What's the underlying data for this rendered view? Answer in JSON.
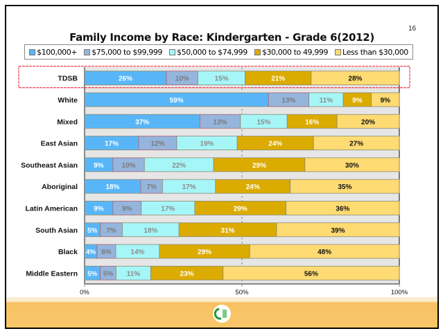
{
  "page_number": "16",
  "chart_data": {
    "type": "bar",
    "orientation": "horizontal",
    "stacked": "percent",
    "title": "Family Income by Race: Kindergarten - Grade 6(2012)",
    "legend_position": "top",
    "categories": [
      "TDSB",
      "White",
      "Mixed",
      "East Asian",
      "Southeast Asian",
      "Aboriginal",
      "Latin American",
      "South Asian",
      "Black",
      "Middle Eastern"
    ],
    "highlighted_category": "TDSB",
    "series": [
      {
        "name": "$100,000+",
        "color": "#58b6f8",
        "label_color": "#ffffff",
        "values": [
          26,
          59,
          37,
          17,
          9,
          18,
          9,
          5,
          4,
          5
        ]
      },
      {
        "name": "$75,000 to $99,999",
        "color": "#95b5dc",
        "label_color": "#7a7a7a",
        "values": [
          10,
          13,
          13,
          12,
          10,
          7,
          9,
          7,
          6,
          5
        ]
      },
      {
        "name": "$50,000 to $74,999",
        "color": "#a6f6f8",
        "label_color": "#8a8a8a",
        "values": [
          15,
          11,
          15,
          19,
          22,
          17,
          17,
          18,
          14,
          11
        ]
      },
      {
        "name": "$30,000 to 49,999",
        "color": "#dcab00",
        "label_color": "#ffffff",
        "values": [
          21,
          9,
          16,
          24,
          29,
          24,
          29,
          31,
          29,
          23
        ]
      },
      {
        "name": "Less than $30,000",
        "color": "#ffdb73",
        "label_color": "#111111",
        "values": [
          28,
          9,
          20,
          27,
          30,
          35,
          36,
          39,
          48,
          56
        ]
      }
    ],
    "xlim": [
      0,
      100
    ],
    "x_ticks": [
      "0%",
      "50%",
      "100%"
    ],
    "reference_line": 50,
    "grid": false
  }
}
